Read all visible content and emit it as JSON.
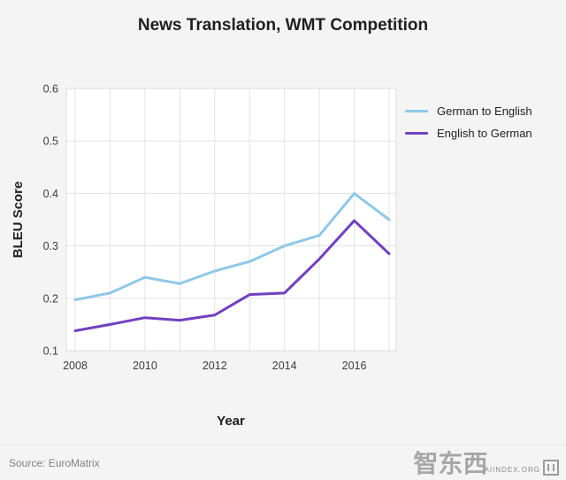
{
  "title": "News Translation, WMT Competition",
  "chart_data": {
    "type": "line",
    "x": [
      2008,
      2009,
      2010,
      2011,
      2012,
      2013,
      2014,
      2015,
      2016,
      2017
    ],
    "series": [
      {
        "name": "German to English",
        "color": "#8fc8e8",
        "values": [
          0.197,
          0.21,
          0.24,
          0.228,
          0.252,
          0.27,
          0.3,
          0.32,
          0.4,
          0.35
        ]
      },
      {
        "name": "English to German",
        "color": "#7040c0",
        "values": [
          0.138,
          0.15,
          0.163,
          0.158,
          0.168,
          0.207,
          0.21,
          0.275,
          0.348,
          0.285
        ]
      }
    ],
    "title": "News Translation, WMT Competition",
    "xlabel": "Year",
    "ylabel": "BLEU Score",
    "ylim": [
      0.1,
      0.6
    ],
    "yticks": [
      0.1,
      0.2,
      0.3,
      0.4,
      0.5,
      0.6
    ],
    "xticks": [
      2008,
      2010,
      2012,
      2014,
      2016
    ],
    "grid": true,
    "legend_position": "upper-right-outside"
  },
  "footer": {
    "source": "Source: EuroMatrix",
    "watermark_site": "AIINDEX.ORG",
    "watermark_logo": "智东西"
  },
  "colors": {
    "background": "#f4f4f4",
    "plot_background": "#ffffff",
    "grid": "#e3e3e3",
    "text": "#2b2b2b",
    "muted": "#808080"
  }
}
